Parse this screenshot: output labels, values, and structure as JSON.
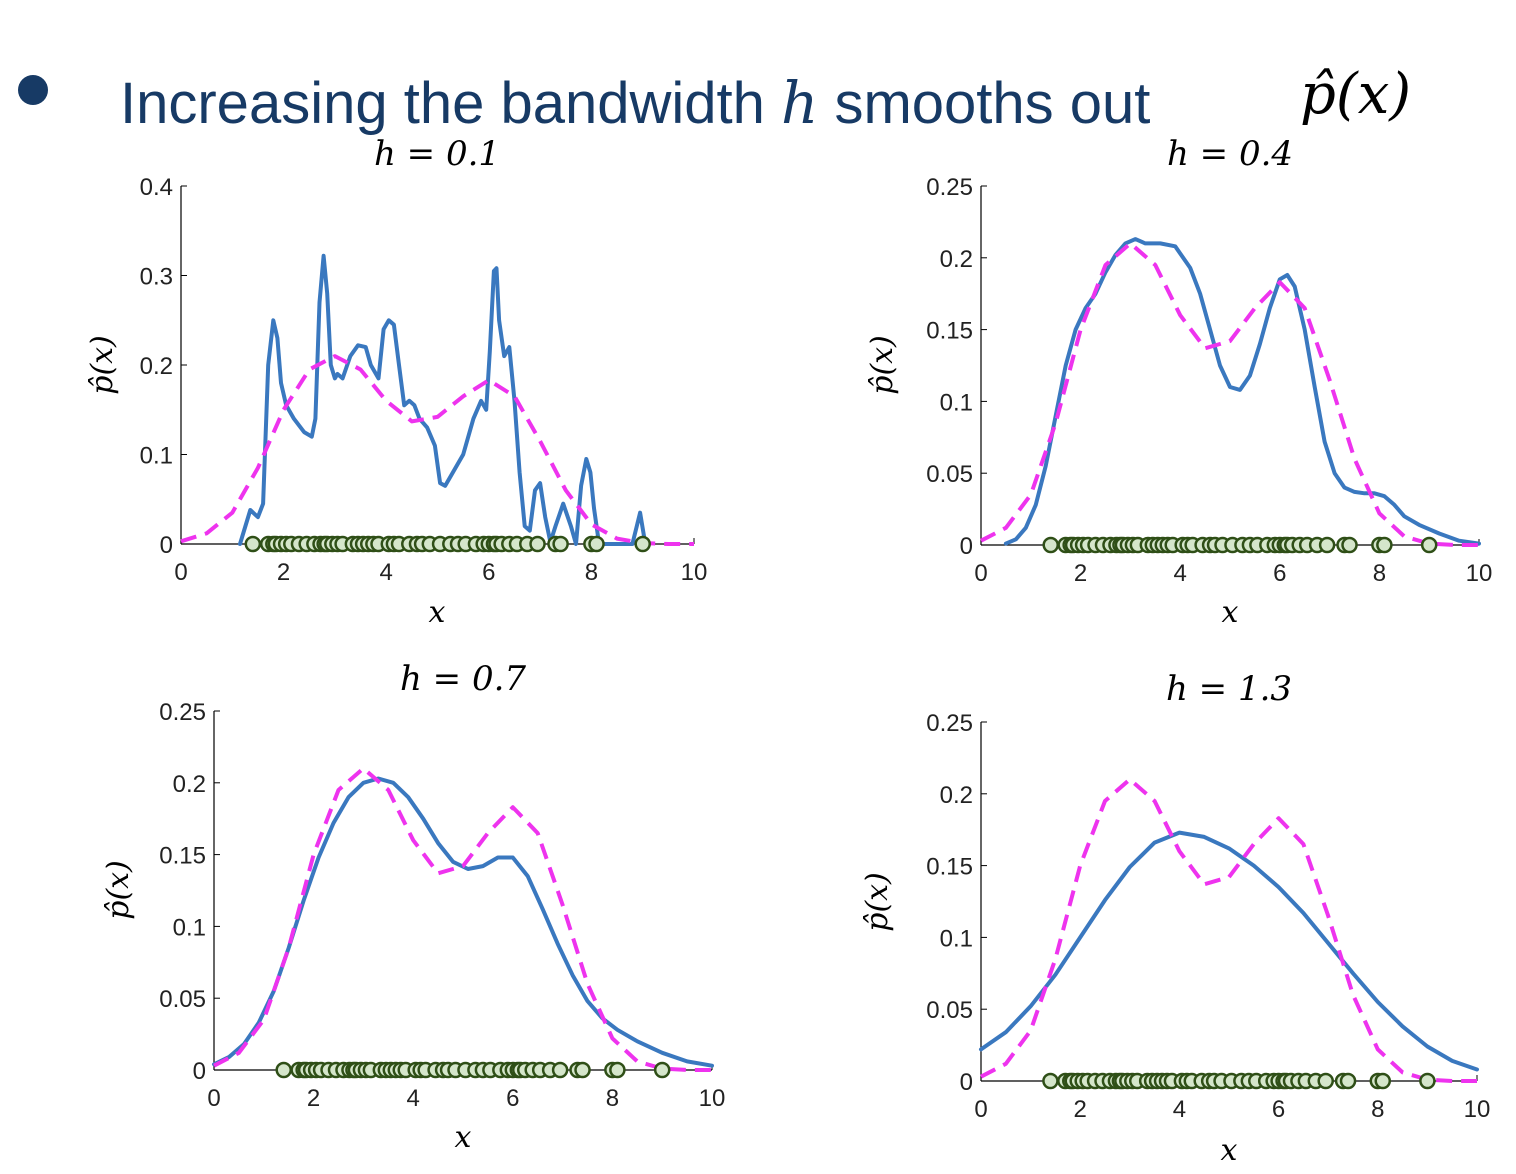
{
  "headline": {
    "text_before": "Increasing the bandwidth ",
    "math_var": "h",
    "text_after": " smooths out",
    "math_expr": "p̂(x)"
  },
  "colors": {
    "headline": "#173a65",
    "kde_line": "#3a78bf",
    "true_density": "#ee33ee",
    "sample_fill": "#d5e6cb",
    "sample_stroke": "#2f4f17",
    "axis": "#000000"
  },
  "chart_data": [
    {
      "type": "line",
      "title": "h = 0.1",
      "xlabel": "x",
      "ylabel": "p̂(x)",
      "xlim": [
        0,
        10
      ],
      "ylim": [
        0,
        0.4
      ],
      "xticks": [
        0,
        2,
        4,
        6,
        8,
        10
      ],
      "yticks": [
        0,
        0.1,
        0.2,
        0.3,
        0.4
      ],
      "ytick_labels": [
        "0",
        "0.1",
        "0.2",
        "0.3",
        "0.4"
      ],
      "series": [
        {
          "style": "solid",
          "x": [
            1.15,
            1.35,
            1.5,
            1.6,
            1.7,
            1.8,
            1.88,
            1.95,
            2.05,
            2.2,
            2.4,
            2.55,
            2.62,
            2.7,
            2.78,
            2.85,
            2.92,
            3.0,
            3.05,
            3.15,
            3.3,
            3.45,
            3.6,
            3.7,
            3.85,
            3.95,
            4.05,
            4.15,
            4.25,
            4.35,
            4.45,
            4.55,
            4.65,
            4.8,
            4.95,
            5.05,
            5.15,
            5.3,
            5.5,
            5.7,
            5.85,
            5.95,
            6.02,
            6.1,
            6.15,
            6.2,
            6.3,
            6.4,
            6.5,
            6.6,
            6.7,
            6.8,
            6.9,
            7.0,
            7.1,
            7.2,
            7.3,
            7.45,
            7.6,
            7.7,
            7.8,
            7.9,
            7.98,
            8.05,
            8.15,
            8.25,
            8.4,
            8.6,
            8.8,
            8.95,
            9.05
          ],
          "y": [
            0.0,
            0.038,
            0.03,
            0.045,
            0.2,
            0.25,
            0.23,
            0.18,
            0.155,
            0.14,
            0.125,
            0.12,
            0.14,
            0.27,
            0.322,
            0.28,
            0.2,
            0.185,
            0.19,
            0.185,
            0.21,
            0.222,
            0.22,
            0.2,
            0.185,
            0.24,
            0.25,
            0.245,
            0.2,
            0.155,
            0.16,
            0.155,
            0.14,
            0.13,
            0.11,
            0.068,
            0.065,
            0.08,
            0.1,
            0.14,
            0.16,
            0.15,
            0.215,
            0.305,
            0.308,
            0.25,
            0.21,
            0.22,
            0.16,
            0.08,
            0.02,
            0.015,
            0.06,
            0.068,
            0.03,
            0.002,
            0.02,
            0.045,
            0.02,
            0.0,
            0.065,
            0.095,
            0.08,
            0.04,
            0.0,
            0.0,
            0.0,
            0.0,
            0.0,
            0.035,
            0.0
          ]
        },
        {
          "style": "dashed",
          "x": [
            0,
            0.5,
            1.0,
            1.5,
            2.0,
            2.5,
            3.0,
            3.5,
            4.0,
            4.5,
            5.0,
            5.5,
            6.0,
            6.5,
            7.0,
            7.5,
            8.0,
            8.5,
            9.0,
            9.5,
            10
          ],
          "y": [
            0.003,
            0.012,
            0.035,
            0.085,
            0.15,
            0.195,
            0.21,
            0.195,
            0.16,
            0.137,
            0.142,
            0.165,
            0.183,
            0.165,
            0.115,
            0.06,
            0.022,
            0.006,
            0.001,
            0.0,
            0.0
          ]
        }
      ],
      "samples": [
        1.4,
        1.7,
        1.8,
        1.85,
        1.95,
        2.05,
        2.15,
        2.3,
        2.45,
        2.6,
        2.72,
        2.8,
        2.85,
        2.95,
        3.05,
        3.15,
        3.35,
        3.45,
        3.55,
        3.65,
        3.75,
        3.85,
        4.05,
        4.15,
        4.25,
        4.45,
        4.6,
        4.7,
        4.85,
        5.05,
        5.25,
        5.4,
        5.55,
        5.75,
        5.9,
        6.0,
        6.1,
        6.15,
        6.25,
        6.4,
        6.55,
        6.75,
        6.95,
        7.3,
        7.4,
        8.0,
        8.1,
        9.0
      ]
    },
    {
      "type": "line",
      "title": "h = 0.4",
      "xlabel": "x",
      "ylabel": "p̂(x)",
      "xlim": [
        0,
        10
      ],
      "ylim": [
        0,
        0.25
      ],
      "xticks": [
        0,
        2,
        4,
        6,
        8,
        10
      ],
      "yticks": [
        0,
        0.05,
        0.1,
        0.15,
        0.2,
        0.25
      ],
      "ytick_labels": [
        "0",
        "0.05",
        "0.1",
        "0.15",
        "0.2",
        "0.25"
      ],
      "series": [
        {
          "style": "solid",
          "x": [
            0.5,
            0.7,
            0.9,
            1.1,
            1.3,
            1.5,
            1.7,
            1.9,
            2.1,
            2.3,
            2.5,
            2.7,
            2.9,
            3.1,
            3.3,
            3.6,
            3.9,
            4.2,
            4.4,
            4.6,
            4.8,
            5.0,
            5.2,
            5.4,
            5.6,
            5.8,
            6.0,
            6.15,
            6.3,
            6.5,
            6.7,
            6.9,
            7.1,
            7.3,
            7.5,
            7.7,
            7.9,
            8.1,
            8.3,
            8.5,
            8.8,
            9.2,
            9.6,
            10.0
          ],
          "y": [
            0.001,
            0.004,
            0.012,
            0.028,
            0.055,
            0.09,
            0.125,
            0.15,
            0.165,
            0.175,
            0.19,
            0.202,
            0.21,
            0.213,
            0.21,
            0.21,
            0.208,
            0.193,
            0.175,
            0.15,
            0.125,
            0.11,
            0.108,
            0.118,
            0.14,
            0.165,
            0.185,
            0.188,
            0.18,
            0.15,
            0.11,
            0.072,
            0.05,
            0.04,
            0.037,
            0.036,
            0.036,
            0.034,
            0.028,
            0.02,
            0.014,
            0.008,
            0.003,
            0.001
          ]
        },
        {
          "style": "dashed",
          "x": [
            0,
            0.5,
            1.0,
            1.5,
            2.0,
            2.5,
            3.0,
            3.5,
            4.0,
            4.5,
            5.0,
            5.5,
            6.0,
            6.5,
            7.0,
            7.5,
            8.0,
            8.5,
            9.0,
            9.5,
            10
          ],
          "y": [
            0.003,
            0.012,
            0.035,
            0.085,
            0.15,
            0.195,
            0.21,
            0.195,
            0.16,
            0.137,
            0.142,
            0.165,
            0.183,
            0.165,
            0.115,
            0.06,
            0.022,
            0.006,
            0.001,
            0.0,
            0.0
          ]
        }
      ],
      "samples": [
        1.4,
        1.7,
        1.8,
        1.85,
        1.95,
        2.05,
        2.15,
        2.3,
        2.45,
        2.6,
        2.72,
        2.8,
        2.85,
        2.95,
        3.05,
        3.15,
        3.35,
        3.45,
        3.55,
        3.65,
        3.75,
        3.85,
        4.05,
        4.15,
        4.25,
        4.45,
        4.6,
        4.7,
        4.85,
        5.05,
        5.25,
        5.4,
        5.55,
        5.75,
        5.9,
        6.0,
        6.1,
        6.15,
        6.25,
        6.4,
        6.55,
        6.75,
        6.95,
        7.3,
        7.4,
        8.0,
        8.1,
        9.0
      ]
    },
    {
      "type": "line",
      "title": "h = 0.7",
      "xlabel": "x",
      "ylabel": "p̂(x)",
      "xlim": [
        0,
        10
      ],
      "ylim": [
        0,
        0.25
      ],
      "xticks": [
        0,
        2,
        4,
        6,
        8,
        10
      ],
      "yticks": [
        0,
        0.05,
        0.1,
        0.15,
        0.2,
        0.25
      ],
      "ytick_labels": [
        "0",
        "0.05",
        "0.1",
        "0.15",
        "0.2",
        "0.25"
      ],
      "series": [
        {
          "style": "solid",
          "x": [
            0,
            0.3,
            0.6,
            0.9,
            1.2,
            1.5,
            1.8,
            2.1,
            2.4,
            2.7,
            3.0,
            3.3,
            3.6,
            3.9,
            4.2,
            4.5,
            4.8,
            5.1,
            5.4,
            5.7,
            6.0,
            6.3,
            6.6,
            6.9,
            7.2,
            7.5,
            7.8,
            8.1,
            8.5,
            9.0,
            9.5,
            10.0
          ],
          "y": [
            0.004,
            0.009,
            0.018,
            0.033,
            0.055,
            0.085,
            0.118,
            0.148,
            0.172,
            0.19,
            0.2,
            0.203,
            0.2,
            0.19,
            0.175,
            0.158,
            0.145,
            0.14,
            0.142,
            0.148,
            0.148,
            0.135,
            0.112,
            0.088,
            0.066,
            0.048,
            0.036,
            0.028,
            0.02,
            0.012,
            0.006,
            0.003
          ]
        },
        {
          "style": "dashed",
          "x": [
            0,
            0.5,
            1.0,
            1.5,
            2.0,
            2.5,
            3.0,
            3.5,
            4.0,
            4.5,
            5.0,
            5.5,
            6.0,
            6.5,
            7.0,
            7.5,
            8.0,
            8.5,
            9.0,
            9.5,
            10
          ],
          "y": [
            0.003,
            0.012,
            0.035,
            0.085,
            0.15,
            0.195,
            0.21,
            0.195,
            0.16,
            0.137,
            0.142,
            0.165,
            0.183,
            0.165,
            0.115,
            0.06,
            0.022,
            0.006,
            0.001,
            0.0,
            0.0
          ]
        }
      ],
      "samples": [
        1.4,
        1.7,
        1.8,
        1.85,
        1.95,
        2.05,
        2.15,
        2.3,
        2.45,
        2.6,
        2.72,
        2.8,
        2.85,
        2.95,
        3.05,
        3.15,
        3.35,
        3.45,
        3.55,
        3.65,
        3.75,
        3.85,
        4.05,
        4.15,
        4.25,
        4.45,
        4.6,
        4.7,
        4.85,
        5.05,
        5.25,
        5.4,
        5.55,
        5.75,
        5.9,
        6.0,
        6.1,
        6.15,
        6.25,
        6.4,
        6.55,
        6.75,
        6.95,
        7.3,
        7.4,
        8.0,
        8.1,
        9.0
      ]
    },
    {
      "type": "line",
      "title": "h = 1.3",
      "xlabel": "x",
      "ylabel": "p̂(x)",
      "xlim": [
        0,
        10
      ],
      "ylim": [
        0,
        0.25
      ],
      "xticks": [
        0,
        2,
        4,
        6,
        8,
        10
      ],
      "yticks": [
        0,
        0.05,
        0.1,
        0.15,
        0.2,
        0.25
      ],
      "ytick_labels": [
        "0",
        "0.05",
        "0.1",
        "0.15",
        "0.2",
        "0.25"
      ],
      "series": [
        {
          "style": "solid",
          "x": [
            0,
            0.5,
            1.0,
            1.5,
            2.0,
            2.5,
            3.0,
            3.5,
            4.0,
            4.5,
            5.0,
            5.5,
            6.0,
            6.5,
            7.0,
            7.5,
            8.0,
            8.5,
            9.0,
            9.5,
            10
          ],
          "y": [
            0.022,
            0.034,
            0.052,
            0.074,
            0.1,
            0.126,
            0.149,
            0.166,
            0.173,
            0.17,
            0.162,
            0.15,
            0.135,
            0.117,
            0.096,
            0.075,
            0.055,
            0.038,
            0.024,
            0.014,
            0.008
          ]
        },
        {
          "style": "dashed",
          "x": [
            0,
            0.5,
            1.0,
            1.5,
            2.0,
            2.5,
            3.0,
            3.5,
            4.0,
            4.5,
            5.0,
            5.5,
            6.0,
            6.5,
            7.0,
            7.5,
            8.0,
            8.5,
            9.0,
            9.5,
            10
          ],
          "y": [
            0.003,
            0.012,
            0.035,
            0.085,
            0.15,
            0.195,
            0.21,
            0.195,
            0.16,
            0.137,
            0.142,
            0.165,
            0.183,
            0.165,
            0.115,
            0.06,
            0.022,
            0.006,
            0.001,
            0.0,
            0.0
          ]
        }
      ],
      "samples": [
        1.4,
        1.7,
        1.8,
        1.85,
        1.95,
        2.05,
        2.15,
        2.3,
        2.45,
        2.6,
        2.72,
        2.8,
        2.85,
        2.95,
        3.05,
        3.15,
        3.35,
        3.45,
        3.55,
        3.65,
        3.75,
        3.85,
        4.05,
        4.15,
        4.25,
        4.45,
        4.6,
        4.7,
        4.85,
        5.05,
        5.25,
        5.4,
        5.55,
        5.75,
        5.9,
        6.0,
        6.1,
        6.15,
        6.25,
        6.4,
        6.55,
        6.75,
        6.95,
        7.3,
        7.4,
        8.0,
        8.1,
        9.0
      ]
    }
  ]
}
